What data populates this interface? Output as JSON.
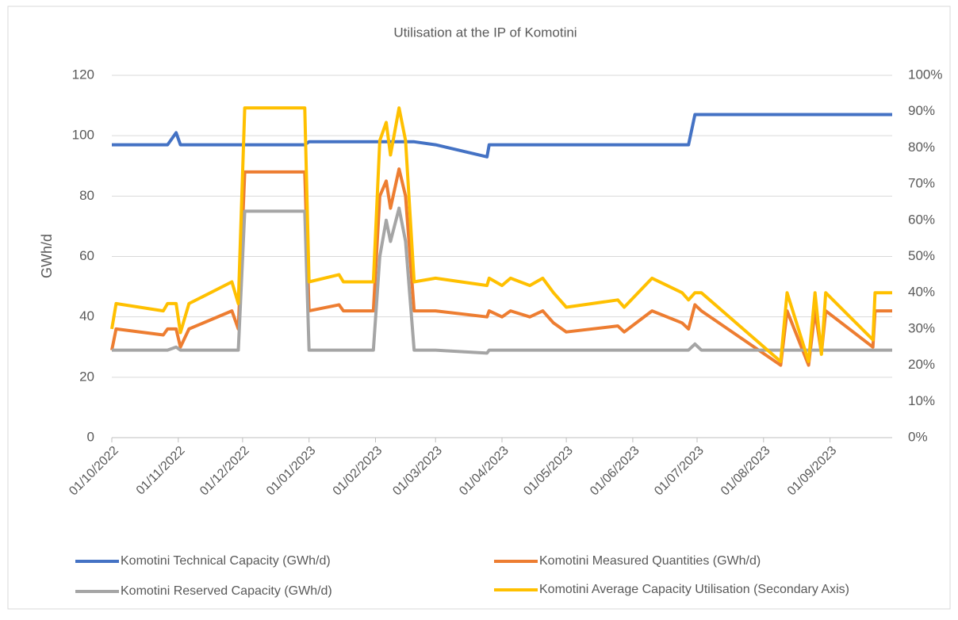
{
  "chart_data": {
    "type": "line",
    "title": "Utilisation at the IP of Komotini",
    "ylabel": "GWh/d",
    "x": [
      "01/10/2022",
      "03/10/2022",
      "25/10/2022",
      "27/10/2022",
      "31/10/2022",
      "02/11/2022",
      "06/11/2022",
      "26/11/2022",
      "29/11/2022",
      "02/12/2022",
      "30/12/2022",
      "01/01/2023",
      "15/01/2023",
      "17/01/2023",
      "31/01/2023",
      "03/02/2023",
      "06/02/2023",
      "08/02/2023",
      "12/02/2023",
      "15/02/2023",
      "19/02/2023",
      "01/03/2023",
      "25/03/2023",
      "26/03/2023",
      "01/04/2023",
      "05/04/2023",
      "14/04/2023",
      "20/04/2023",
      "25/04/2023",
      "01/05/2023",
      "25/05/2023",
      "28/05/2023",
      "10/06/2023",
      "24/06/2023",
      "27/06/2023",
      "30/06/2023",
      "03/07/2023",
      "09/08/2023",
      "12/08/2023",
      "22/08/2023",
      "25/08/2023",
      "28/08/2023",
      "30/08/2023",
      "21/09/2023",
      "22/09/2023",
      "30/09/2023"
    ],
    "xlim": [
      "01/10/2022",
      "30/09/2023"
    ],
    "xticks": [
      "01/10/2022",
      "01/11/2022",
      "01/12/2022",
      "01/01/2023",
      "01/02/2023",
      "01/03/2023",
      "01/04/2023",
      "01/05/2023",
      "01/06/2023",
      "01/07/2023",
      "01/08/2023",
      "01/09/2023"
    ],
    "ylim": [
      0,
      120
    ],
    "yticks": [
      0,
      20,
      40,
      60,
      80,
      100,
      120
    ],
    "y2lim": [
      0,
      100
    ],
    "y2ticks": [
      {
        "value": 0,
        "label": "0%"
      },
      {
        "value": 10,
        "label": "10%"
      },
      {
        "value": 20,
        "label": "20%"
      },
      {
        "value": 30,
        "label": "30%"
      },
      {
        "value": 40,
        "label": "40%"
      },
      {
        "value": 50,
        "label": "50%"
      },
      {
        "value": 60,
        "label": "60%"
      },
      {
        "value": 70,
        "label": "70%"
      },
      {
        "value": 80,
        "label": "80%"
      },
      {
        "value": 90,
        "label": "90%"
      },
      {
        "value": 100,
        "label": "100%"
      }
    ],
    "grid": true,
    "legend": "bottom",
    "series": [
      {
        "name": "Komotini Technical Capacity (GWh/d)",
        "color": "#4472c4",
        "values": [
          97,
          97,
          97,
          97,
          101,
          97,
          97,
          97,
          97,
          97,
          97,
          98,
          98,
          98,
          98,
          98,
          98,
          98,
          98,
          98,
          98,
          97,
          93,
          97,
          97,
          97,
          97,
          97,
          97,
          97,
          97,
          97,
          97,
          97,
          97,
          107,
          107,
          107,
          107,
          107,
          107,
          107,
          107,
          107,
          107,
          107
        ]
      },
      {
        "name": "Komotini Measured Quantities (GWh/d)",
        "color": "#ed7d31",
        "values": [
          29,
          36,
          34,
          36,
          36,
          30,
          36,
          42,
          36,
          88,
          88,
          42,
          44,
          42,
          42,
          80,
          85,
          76,
          89,
          80,
          42,
          42,
          40,
          42,
          40,
          42,
          40,
          42,
          38,
          35,
          37,
          35,
          42,
          38,
          36,
          44,
          42,
          24,
          42,
          24,
          42,
          28,
          42,
          30,
          42,
          42
        ]
      },
      {
        "name": "Komotini Reserved Capacity (GWh/d)",
        "color": "#a5a5a5",
        "values": [
          29,
          29,
          29,
          29,
          30,
          29,
          29,
          29,
          29,
          75,
          75,
          29,
          29,
          29,
          29,
          60,
          72,
          65,
          76,
          65,
          29,
          29,
          28,
          29,
          29,
          29,
          29,
          29,
          29,
          29,
          29,
          29,
          29,
          29,
          29,
          31,
          29,
          29,
          29,
          29,
          29,
          29,
          29,
          29,
          29,
          29
        ]
      },
      {
        "name": "Komotini Average Capacity Utilisation (Secondary Axis)",
        "color": "#ffc000",
        "axis": "y2",
        "values": [
          30,
          37,
          35,
          37,
          37,
          29,
          37,
          43,
          37,
          91,
          91,
          43,
          45,
          43,
          43,
          82,
          87,
          78,
          91,
          82,
          43,
          44,
          42,
          44,
          42,
          44,
          42,
          44,
          40,
          36,
          38,
          36,
          44,
          40,
          38,
          40,
          40,
          21,
          40,
          21,
          40,
          23,
          40,
          27,
          40,
          40
        ]
      }
    ]
  }
}
